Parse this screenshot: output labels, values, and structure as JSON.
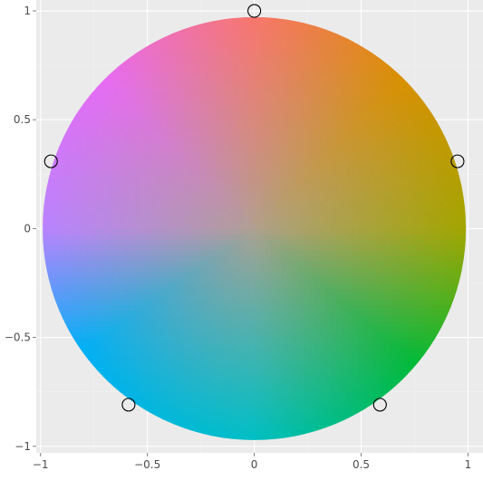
{
  "chart_data": {
    "type": "scatter",
    "title": "",
    "xlabel": "",
    "ylabel": "",
    "xlim": [
      -1.02,
      1.07
    ],
    "ylim": [
      -1.03,
      1.05
    ],
    "x_ticks": [
      "-1",
      "-0.5",
      "0",
      "0.5",
      "1"
    ],
    "y_ticks": [
      "-1",
      "-0.5",
      "0",
      "0.5",
      "1"
    ],
    "grid": true,
    "legend": "none",
    "series": [
      {
        "kind": "filled-disc-gradient",
        "center": [
          0,
          0
        ],
        "radius": 0.99,
        "colors": {
          "top": "#f8766d",
          "upper_left": "#e76bf3",
          "left": "#b983ff",
          "lower_left": "#00b0f6",
          "bottom": "#00bfc4",
          "lower_right": "#00ba38",
          "right": "#a3a500",
          "upper_right": "#d89000",
          "center": "#b0a090"
        }
      },
      {
        "kind": "open-circles",
        "x": [
          0,
          0.951,
          0.588,
          -0.588,
          -0.951
        ],
        "y": [
          1,
          0.309,
          -0.809,
          -0.809,
          0.309
        ]
      }
    ]
  },
  "colors": {
    "panel_background": "#ebebeb",
    "grid_major": "#ffffff",
    "grid_minor": "#f2f2f2",
    "marker_stroke": "#000000"
  }
}
